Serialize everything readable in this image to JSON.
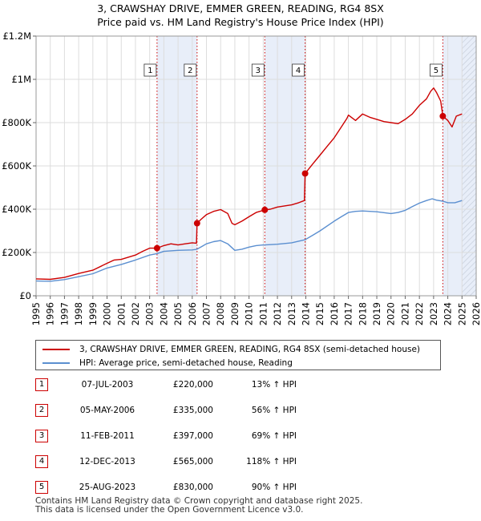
{
  "title_line1": "3, CRAWSHAY DRIVE, EMMER GREEN, READING, RG4 8SX",
  "title_line2": "Price paid vs. HM Land Registry's House Price Index (HPI)",
  "legend": {
    "property": "3, CRAWSHAY DRIVE, EMMER GREEN, READING, RG4 8SX (semi-detached house)",
    "hpi": "HPI: Average price, semi-detached house, Reading"
  },
  "colors": {
    "property": "#cc0000",
    "hpi": "#5b8fd0",
    "shade": "#e8eef9",
    "grid": "#dddddd",
    "marker": "#cc0000"
  },
  "sales": [
    {
      "num": "1",
      "date": "07-JUL-2003",
      "price": "£220,000",
      "hpi_rel": "13% ↑ HPI"
    },
    {
      "num": "2",
      "date": "05-MAY-2006",
      "price": "£335,000",
      "hpi_rel": "56% ↑ HPI"
    },
    {
      "num": "3",
      "date": "11-FEB-2011",
      "price": "£397,000",
      "hpi_rel": "69% ↑ HPI"
    },
    {
      "num": "4",
      "date": "12-DEC-2013",
      "price": "£565,000",
      "hpi_rel": "118% ↑ HPI"
    },
    {
      "num": "5",
      "date": "25-AUG-2023",
      "price": "£830,000",
      "hpi_rel": "90% ↑ HPI"
    }
  ],
  "footer_line1": "Contains HM Land Registry data © Crown copyright and database right 2025.",
  "footer_line2": "This data is licensed under the Open Government Licence v3.0.",
  "chart_data": {
    "type": "line",
    "title": "3, CRAWSHAY DRIVE, EMMER GREEN, READING, RG4 8SX",
    "subtitle": "Price paid vs. HM Land Registry's House Price Index (HPI)",
    "xlabel": "",
    "ylabel": "",
    "xlim": [
      1995,
      2026
    ],
    "ylim": [
      0,
      1200000
    ],
    "x_ticks": [
      "1995",
      "1996",
      "1997",
      "1998",
      "1999",
      "2000",
      "2001",
      "2002",
      "2003",
      "2004",
      "2005",
      "2006",
      "2007",
      "2008",
      "2009",
      "2010",
      "2011",
      "2012",
      "2013",
      "2014",
      "2015",
      "2016",
      "2017",
      "2018",
      "2019",
      "2020",
      "2021",
      "2022",
      "2023",
      "2024",
      "2025",
      "2026"
    ],
    "y_ticks": [
      {
        "value": 0,
        "label": "£0"
      },
      {
        "value": 200000,
        "label": "£200K"
      },
      {
        "value": 400000,
        "label": "£400K"
      },
      {
        "value": 600000,
        "label": "£600K"
      },
      {
        "value": 800000,
        "label": "£800K"
      },
      {
        "value": 1000000,
        "label": "£1M"
      },
      {
        "value": 1200000,
        "label": "£1.2M"
      }
    ],
    "grid": true,
    "legend_position": "below",
    "shaded_ranges": [
      [
        2003.52,
        2006.34
      ],
      [
        2011.11,
        2013.95
      ],
      [
        2023.65,
        2026
      ]
    ],
    "hatched_range": [
      2025.0,
      2026
    ],
    "series": [
      {
        "name": "3, CRAWSHAY DRIVE, EMMER GREEN, READING, RG4 8SX (semi-detached house)",
        "x": [
          1995.0,
          1996.0,
          1997.0,
          1998.0,
          1999.0,
          2000.0,
          2000.5,
          2001.0,
          2002.0,
          2002.5,
          2003.0,
          2003.52,
          2004.0,
          2004.5,
          2005.0,
          2005.5,
          2006.0,
          2006.3,
          2006.34,
          2006.6,
          2007.0,
          2007.5,
          2008.0,
          2008.5,
          2008.8,
          2009.0,
          2009.5,
          2010.0,
          2010.5,
          2011.0,
          2011.11,
          2011.5,
          2012.0,
          2012.5,
          2013.0,
          2013.5,
          2013.9,
          2013.95,
          2014.5,
          2015.0,
          2015.5,
          2016.0,
          2016.5,
          2016.9,
          2017.0,
          2017.5,
          2018.0,
          2018.5,
          2019.0,
          2019.5,
          2020.0,
          2020.5,
          2021.0,
          2021.5,
          2022.0,
          2022.5,
          2022.8,
          2023.0,
          2023.2,
          2023.5,
          2023.65,
          2024.0,
          2024.3,
          2024.6,
          2025.0
        ],
        "y": [
          78000,
          76000,
          85000,
          103000,
          118000,
          150000,
          165000,
          168000,
          188000,
          205000,
          220000,
          220000,
          232000,
          240000,
          235000,
          240000,
          245000,
          243000,
          335000,
          352000,
          375000,
          390000,
          398000,
          380000,
          335000,
          328000,
          345000,
          365000,
          385000,
          395000,
          397000,
          400000,
          410000,
          415000,
          420000,
          430000,
          440000,
          565000,
          610000,
          650000,
          690000,
          730000,
          780000,
          820000,
          835000,
          810000,
          840000,
          825000,
          815000,
          805000,
          800000,
          795000,
          815000,
          840000,
          880000,
          910000,
          945000,
          960000,
          940000,
          900000,
          830000,
          810000,
          780000,
          830000,
          840000
        ]
      },
      {
        "name": "HPI: Average price, semi-detached house, Reading",
        "x": [
          1995.0,
          1996.0,
          1997.0,
          1998.0,
          1999.0,
          2000.0,
          2001.0,
          2002.0,
          2003.0,
          2003.52,
          2004.0,
          2005.0,
          2006.0,
          2006.34,
          2007.0,
          2007.5,
          2008.0,
          2008.5,
          2009.0,
          2009.5,
          2010.0,
          2010.5,
          2011.0,
          2011.11,
          2012.0,
          2013.0,
          2013.95,
          2014.5,
          2015.0,
          2016.0,
          2016.5,
          2017.0,
          2017.5,
          2018.0,
          2019.0,
          2020.0,
          2020.5,
          2021.0,
          2021.5,
          2022.0,
          2022.5,
          2022.9,
          2023.2,
          2023.65,
          2024.0,
          2024.5,
          2025.0
        ],
        "y": [
          68000,
          67000,
          75000,
          88000,
          102000,
          128000,
          145000,
          165000,
          188000,
          195000,
          205000,
          210000,
          212000,
          215000,
          240000,
          250000,
          255000,
          240000,
          210000,
          215000,
          225000,
          232000,
          235000,
          235000,
          238000,
          245000,
          259000,
          280000,
          300000,
          345000,
          365000,
          385000,
          390000,
          392000,
          388000,
          380000,
          385000,
          395000,
          412000,
          428000,
          440000,
          448000,
          442000,
          437000,
          430000,
          430000,
          440000
        ]
      }
    ],
    "markers": [
      {
        "label": "1",
        "x": 2003.52,
        "y": 220000
      },
      {
        "label": "2",
        "x": 2006.34,
        "y": 335000
      },
      {
        "label": "3",
        "x": 2011.11,
        "y": 397000
      },
      {
        "label": "4",
        "x": 2013.95,
        "y": 565000
      },
      {
        "label": "5",
        "x": 2023.65,
        "y": 830000
      }
    ]
  }
}
